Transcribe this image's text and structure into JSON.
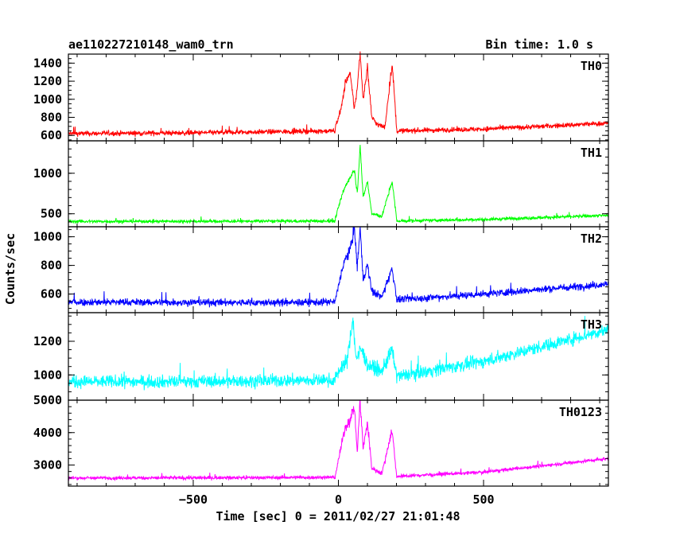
{
  "chart_data": {
    "type": "line",
    "title": "ae110227210148_wam0_trn",
    "subtitle": "Bin time: 1.0 s",
    "xlabel": "Time [sec] 0 = 2011/02/27 21:01:48",
    "ylabel": "Counts/sec",
    "xlim": [
      -930,
      930
    ],
    "x_ticks": [
      -500,
      0,
      500
    ],
    "x_tick_labels": [
      "−500",
      "0",
      "500"
    ],
    "grid": false,
    "panels": [
      {
        "name": "TH0",
        "color": "#ff0000",
        "ylim": [
          540,
          1500
        ],
        "y_ticks": [
          600,
          800,
          1000,
          1200,
          1400
        ],
        "y_tick_labels": [
          "600",
          "800",
          "1000",
          "1200",
          "1400"
        ],
        "y_minor_step": 50,
        "baseline": [
          [
            -930,
            620
          ],
          [
            -500,
            628
          ],
          [
            0,
            650
          ],
          [
            200,
            650
          ],
          [
            500,
            670
          ],
          [
            930,
            735
          ]
        ],
        "noise": 28,
        "features": [
          [
            -10,
            700
          ],
          [
            10,
            900
          ],
          [
            25,
            1200
          ],
          [
            40,
            1280
          ],
          [
            55,
            900
          ],
          [
            65,
            1120
          ],
          [
            75,
            1530
          ],
          [
            85,
            1000
          ],
          [
            100,
            1350
          ],
          [
            115,
            800
          ],
          [
            135,
            720
          ],
          [
            160,
            690
          ],
          [
            185,
            1400
          ],
          [
            200,
            700
          ]
        ]
      },
      {
        "name": "TH1",
        "color": "#00ff00",
        "ylim": [
          340,
          1400
        ],
        "y_ticks": [
          500,
          1000
        ],
        "y_tick_labels": [
          "500",
          "1000"
        ],
        "y_minor_step": 100,
        "baseline": [
          [
            -930,
            405
          ],
          [
            0,
            410
          ],
          [
            200,
            410
          ],
          [
            500,
            430
          ],
          [
            930,
            480
          ]
        ],
        "noise": 20,
        "features": [
          [
            -10,
            450
          ],
          [
            10,
            700
          ],
          [
            25,
            850
          ],
          [
            40,
            950
          ],
          [
            55,
            1050
          ],
          [
            65,
            750
          ],
          [
            75,
            1350
          ],
          [
            85,
            700
          ],
          [
            100,
            900
          ],
          [
            115,
            500
          ],
          [
            150,
            470
          ],
          [
            185,
            900
          ],
          [
            200,
            450
          ]
        ]
      },
      {
        "name": "TH2",
        "color": "#0000ff",
        "ylim": [
          470,
          1070
        ],
        "y_ticks": [
          600,
          800,
          1000
        ],
        "y_tick_labels": [
          "600",
          "800",
          "1000"
        ],
        "y_minor_step": 50,
        "baseline": [
          [
            -930,
            545
          ],
          [
            -200,
            540
          ],
          [
            0,
            545
          ],
          [
            200,
            560
          ],
          [
            500,
            600
          ],
          [
            930,
            670
          ]
        ],
        "noise": 26,
        "features": [
          [
            -10,
            560
          ],
          [
            10,
            750
          ],
          [
            25,
            850
          ],
          [
            40,
            900
          ],
          [
            55,
            1070
          ],
          [
            65,
            780
          ],
          [
            75,
            1070
          ],
          [
            85,
            700
          ],
          [
            100,
            800
          ],
          [
            115,
            620
          ],
          [
            150,
            580
          ],
          [
            185,
            780
          ],
          [
            200,
            580
          ]
        ]
      },
      {
        "name": "TH3",
        "color": "#00ffff",
        "ylim": [
          850,
          1370
        ],
        "y_ticks": [
          1000,
          1200
        ],
        "y_tick_labels": [
          "1000",
          "1200"
        ],
        "y_minor_step": 50,
        "baseline": [
          [
            -930,
            960
          ],
          [
            -500,
            960
          ],
          [
            0,
            970
          ],
          [
            200,
            990
          ],
          [
            500,
            1080
          ],
          [
            930,
            1270
          ]
        ],
        "noise": 38,
        "features": [
          [
            -10,
            980
          ],
          [
            10,
            1050
          ],
          [
            30,
            1080
          ],
          [
            50,
            1340
          ],
          [
            60,
            1100
          ],
          [
            80,
            1150
          ],
          [
            100,
            1060
          ],
          [
            150,
            1020
          ],
          [
            185,
            1150
          ],
          [
            200,
            1000
          ]
        ]
      },
      {
        "name": "TH0123",
        "color": "#ff00ff",
        "ylim": [
          2350,
          5000
        ],
        "y_ticks": [
          3000,
          4000,
          5000
        ],
        "y_tick_labels": [
          "3000",
          "4000",
          "5000"
        ],
        "y_minor_step": 200,
        "baseline": [
          [
            -930,
            2600
          ],
          [
            -500,
            2605
          ],
          [
            0,
            2620
          ],
          [
            200,
            2650
          ],
          [
            500,
            2780
          ],
          [
            930,
            3200
          ]
        ],
        "noise": 55,
        "features": [
          [
            -10,
            2700
          ],
          [
            10,
            3600
          ],
          [
            25,
            4200
          ],
          [
            40,
            4400
          ],
          [
            55,
            4800
          ],
          [
            65,
            3400
          ],
          [
            75,
            5000
          ],
          [
            85,
            3500
          ],
          [
            100,
            4300
          ],
          [
            115,
            2900
          ],
          [
            150,
            2750
          ],
          [
            185,
            4100
          ],
          [
            200,
            2700
          ]
        ]
      }
    ]
  }
}
